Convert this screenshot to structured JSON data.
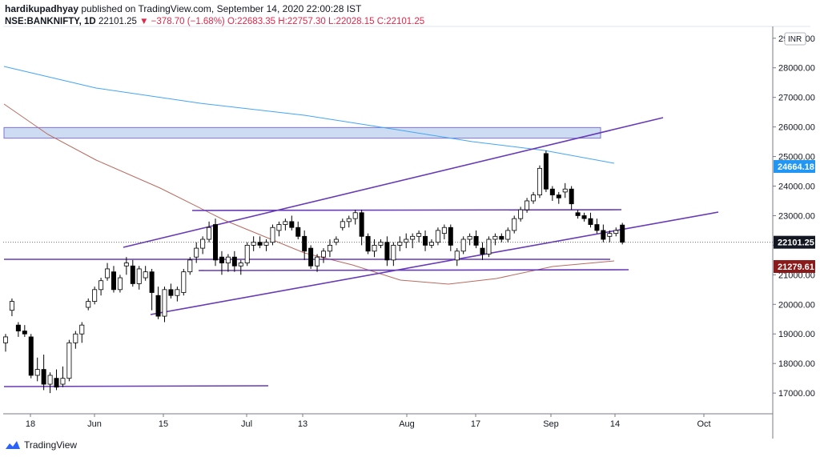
{
  "header": {
    "author": "hardikupadhyay",
    "published_text": "published on TradingView.com, September 14, 2020 22:00:28 IST",
    "symbol": "NSE:BANKNIFTY, 1D",
    "last": "22101.25",
    "change": "▼ −378.70 (−1.68%)",
    "open": "O:22683.35",
    "high": "H:22757.30",
    "low": "L:22028.15",
    "close": "C:22101.25"
  },
  "footer": {
    "brand": "TradingView"
  },
  "chart_data": {
    "type": "candlestick",
    "currency": "INR",
    "x_tick_labels": [
      "18",
      "Jun",
      "15",
      "Jul",
      "13",
      "Aug",
      "17",
      "Sep",
      "14",
      "Oct"
    ],
    "y_tick_labels": [
      "17000.00",
      "18000.00",
      "19000.00",
      "20000.00",
      "21000.00",
      "22000.00",
      "23000.00",
      "24000.00",
      "25000.00",
      "26000.00",
      "27000.00",
      "28000.00",
      "29000.00"
    ],
    "ylim": [
      16300,
      29400
    ],
    "price_labels": [
      {
        "value": 24664.18,
        "text": "24664.18",
        "color": "#2196f3"
      },
      {
        "value": 22101.25,
        "text": "22101.25",
        "color": "#131722"
      },
      {
        "value": 21279.61,
        "text": "21279.61",
        "color": "#8b1a1a"
      }
    ],
    "candles": [
      [
        18700,
        19000,
        18400,
        18900
      ],
      [
        19800,
        20200,
        19600,
        20100
      ],
      [
        19300,
        19400,
        18900,
        19100
      ],
      [
        19100,
        19300,
        18900,
        19000
      ],
      [
        18900,
        19000,
        17500,
        17600
      ],
      [
        17600,
        18200,
        17400,
        17800
      ],
      [
        17800,
        18300,
        17100,
        17300
      ],
      [
        17300,
        17700,
        17000,
        17600
      ],
      [
        17500,
        17800,
        17100,
        17200
      ],
      [
        17300,
        17900,
        17200,
        17500
      ],
      [
        17500,
        18800,
        17400,
        18700
      ],
      [
        18700,
        19100,
        18500,
        19000
      ],
      [
        19000,
        19400,
        18700,
        19300
      ],
      [
        19900,
        20200,
        19800,
        20100
      ],
      [
        20100,
        20600,
        20000,
        20500
      ],
      [
        20500,
        20900,
        20300,
        20800
      ],
      [
        20900,
        21400,
        20800,
        21200
      ],
      [
        21100,
        21300,
        20400,
        20500
      ],
      [
        20500,
        21000,
        20400,
        20900
      ],
      [
        21300,
        21600,
        21000,
        21400
      ],
      [
        21300,
        21500,
        20600,
        20700
      ],
      [
        20700,
        21300,
        20500,
        21200
      ],
      [
        20900,
        21300,
        20800,
        21100
      ],
      [
        21100,
        21200,
        19800,
        20400
      ],
      [
        20300,
        20600,
        19500,
        19600
      ],
      [
        19600,
        20600,
        19400,
        20500
      ],
      [
        20500,
        20700,
        20200,
        20300
      ],
      [
        20300,
        20600,
        20100,
        20500
      ],
      [
        20400,
        21200,
        20300,
        21100
      ],
      [
        21100,
        21600,
        21000,
        21500
      ],
      [
        21600,
        22100,
        21400,
        21900
      ],
      [
        21900,
        22300,
        21700,
        22200
      ],
      [
        22200,
        22800,
        22100,
        22600
      ],
      [
        22700,
        22900,
        21300,
        21500
      ],
      [
        21600,
        21800,
        21000,
        21400
      ],
      [
        21400,
        21700,
        21100,
        21600
      ],
      [
        21600,
        21800,
        21100,
        21300
      ],
      [
        21300,
        21500,
        21000,
        21400
      ],
      [
        21400,
        22100,
        21300,
        22000
      ],
      [
        22000,
        22300,
        21800,
        22100
      ],
      [
        22100,
        22300,
        21900,
        22000
      ],
      [
        22000,
        22200,
        21800,
        22100
      ],
      [
        22100,
        22700,
        22000,
        22600
      ],
      [
        22500,
        22800,
        22300,
        22700
      ],
      [
        22700,
        22900,
        22500,
        22800
      ],
      [
        22800,
        23000,
        22500,
        22600
      ],
      [
        22600,
        22800,
        22200,
        22300
      ],
      [
        22300,
        22500,
        21500,
        21800
      ],
      [
        21900,
        22000,
        21200,
        21300
      ],
      [
        21300,
        21700,
        21100,
        21600
      ],
      [
        21600,
        21900,
        21400,
        21800
      ],
      [
        21800,
        22200,
        21600,
        22000
      ],
      [
        22100,
        22300,
        22000,
        22200
      ],
      [
        22600,
        22900,
        22500,
        22800
      ],
      [
        22800,
        23000,
        22600,
        22900
      ],
      [
        22900,
        23200,
        22700,
        23100
      ],
      [
        23100,
        23200,
        22000,
        22300
      ],
      [
        22300,
        22400,
        21700,
        21800
      ],
      [
        21800,
        22200,
        21600,
        22000
      ],
      [
        22000,
        22200,
        21900,
        22100
      ],
      [
        22100,
        22300,
        21300,
        21500
      ],
      [
        21500,
        22100,
        21300,
        22000
      ],
      [
        22000,
        22300,
        21800,
        22100
      ],
      [
        22100,
        22400,
        21900,
        22200
      ],
      [
        22200,
        22400,
        21900,
        22300
      ],
      [
        22300,
        22500,
        22100,
        22400
      ],
      [
        22300,
        22500,
        21800,
        22000
      ],
      [
        22000,
        22200,
        21900,
        22100
      ],
      [
        22100,
        22600,
        22000,
        22500
      ],
      [
        22400,
        22700,
        22200,
        22600
      ],
      [
        22600,
        22700,
        21800,
        22000
      ],
      [
        21500,
        21900,
        21300,
        21800
      ],
      [
        21800,
        22300,
        21700,
        22200
      ],
      [
        22200,
        22400,
        22000,
        22300
      ],
      [
        22300,
        22500,
        21900,
        22000
      ],
      [
        21900,
        22100,
        21500,
        21700
      ],
      [
        21700,
        22300,
        21600,
        22200
      ],
      [
        22200,
        22400,
        22000,
        22300
      ],
      [
        22300,
        22400,
        22100,
        22200
      ],
      [
        22200,
        22600,
        22100,
        22500
      ],
      [
        22500,
        23000,
        22400,
        22900
      ],
      [
        22900,
        23300,
        22800,
        23200
      ],
      [
        23200,
        23600,
        23100,
        23500
      ],
      [
        23500,
        23800,
        23400,
        23700
      ],
      [
        23700,
        24700,
        23600,
        24600
      ],
      [
        25100,
        25200,
        23800,
        23900
      ],
      [
        23900,
        24000,
        23500,
        23700
      ],
      [
        23700,
        23800,
        23400,
        23600
      ],
      [
        23800,
        24100,
        23600,
        23900
      ],
      [
        23900,
        24000,
        23200,
        23400
      ],
      [
        23100,
        23200,
        22900,
        23000
      ],
      [
        23000,
        23100,
        22800,
        22900
      ],
      [
        22900,
        23100,
        22600,
        22700
      ],
      [
        22700,
        22900,
        22400,
        22500
      ],
      [
        22500,
        22700,
        22100,
        22200
      ],
      [
        22300,
        22500,
        22100,
        22400
      ],
      [
        22400,
        22600,
        22300,
        22500
      ],
      [
        22683,
        22757,
        22028,
        22101
      ]
    ]
  }
}
